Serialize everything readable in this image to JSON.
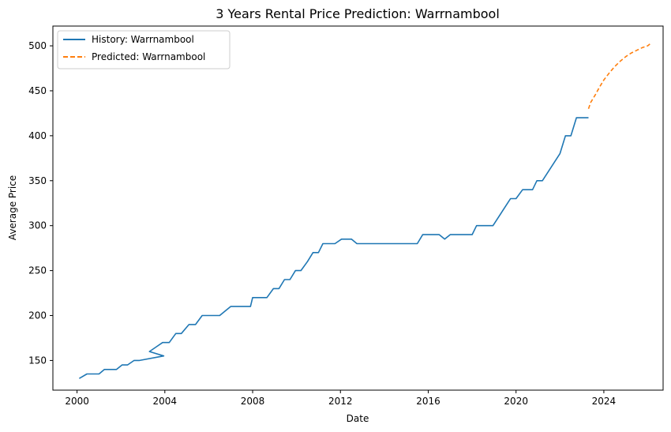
{
  "chart_data": {
    "type": "line",
    "title": "3 Years Rental Price Prediction: Warrnambool",
    "xlabel": "Date",
    "ylabel": "Average Price",
    "xlim": [
      1998.9,
      2026.7
    ],
    "ylim": [
      117,
      522
    ],
    "x_ticks": [
      2000,
      2004,
      2008,
      2012,
      2016,
      2020,
      2024
    ],
    "y_ticks": [
      150,
      200,
      250,
      300,
      350,
      400,
      450,
      500
    ],
    "legend_position": "upper-left",
    "series": [
      {
        "name": "History: Warrnambool",
        "color": "#1f77b4",
        "style": "solid",
        "x": [
          2000.1,
          2000.45,
          2001.0,
          2001.25,
          2001.8,
          2002.05,
          2002.3,
          2002.6,
          2002.85,
          2003.95,
          2003.3,
          2003.6,
          2003.9,
          2004.2,
          2004.5,
          2004.75,
          2005.1,
          2005.4,
          2005.7,
          2006.0,
          2006.5,
          2006.75,
          2007.0,
          2007.5,
          2007.9,
          2008.0,
          2008.4,
          2008.65,
          2008.95,
          2009.2,
          2009.45,
          2009.7,
          2009.95,
          2010.2,
          2010.5,
          2010.75,
          2011.0,
          2011.2,
          2011.5,
          2011.75,
          2012.05,
          2012.5,
          2012.75,
          2013.0,
          2015.5,
          2015.75,
          2016.0,
          2016.5,
          2016.75,
          2017.0,
          2017.5,
          2018.0,
          2018.2,
          2018.95,
          2019.75,
          2020.0,
          2020.3,
          2020.75,
          2020.95,
          2021.2,
          2022.0,
          2022.25,
          2022.5,
          2022.75,
          2023.3
        ],
        "y": [
          130,
          135,
          135,
          140,
          140,
          145,
          145,
          150,
          150,
          155,
          160,
          165,
          170,
          170,
          180,
          180,
          190,
          190,
          200,
          200,
          200,
          205,
          210,
          210,
          210,
          220,
          220,
          220,
          230,
          230,
          240,
          240,
          250,
          250,
          260,
          270,
          270,
          280,
          280,
          280,
          285,
          285,
          280,
          280,
          280,
          290,
          290,
          290,
          285,
          290,
          290,
          290,
          300,
          300,
          330,
          330,
          340,
          340,
          350,
          350,
          380,
          400,
          400,
          420,
          420
        ]
      },
      {
        "name": "Predicted: Warrnambool",
        "color": "#ff7f0e",
        "style": "dashed",
        "x": [
          2023.3,
          2023.4,
          2023.6,
          2023.8,
          2024.0,
          2024.25,
          2024.5,
          2024.75,
          2025.0,
          2025.25,
          2025.5,
          2025.75,
          2026.0,
          2026.1
        ],
        "y": [
          430,
          437,
          445,
          454,
          462,
          470,
          477,
          483,
          488,
          492,
          495,
          498,
          500,
          502
        ]
      }
    ]
  }
}
